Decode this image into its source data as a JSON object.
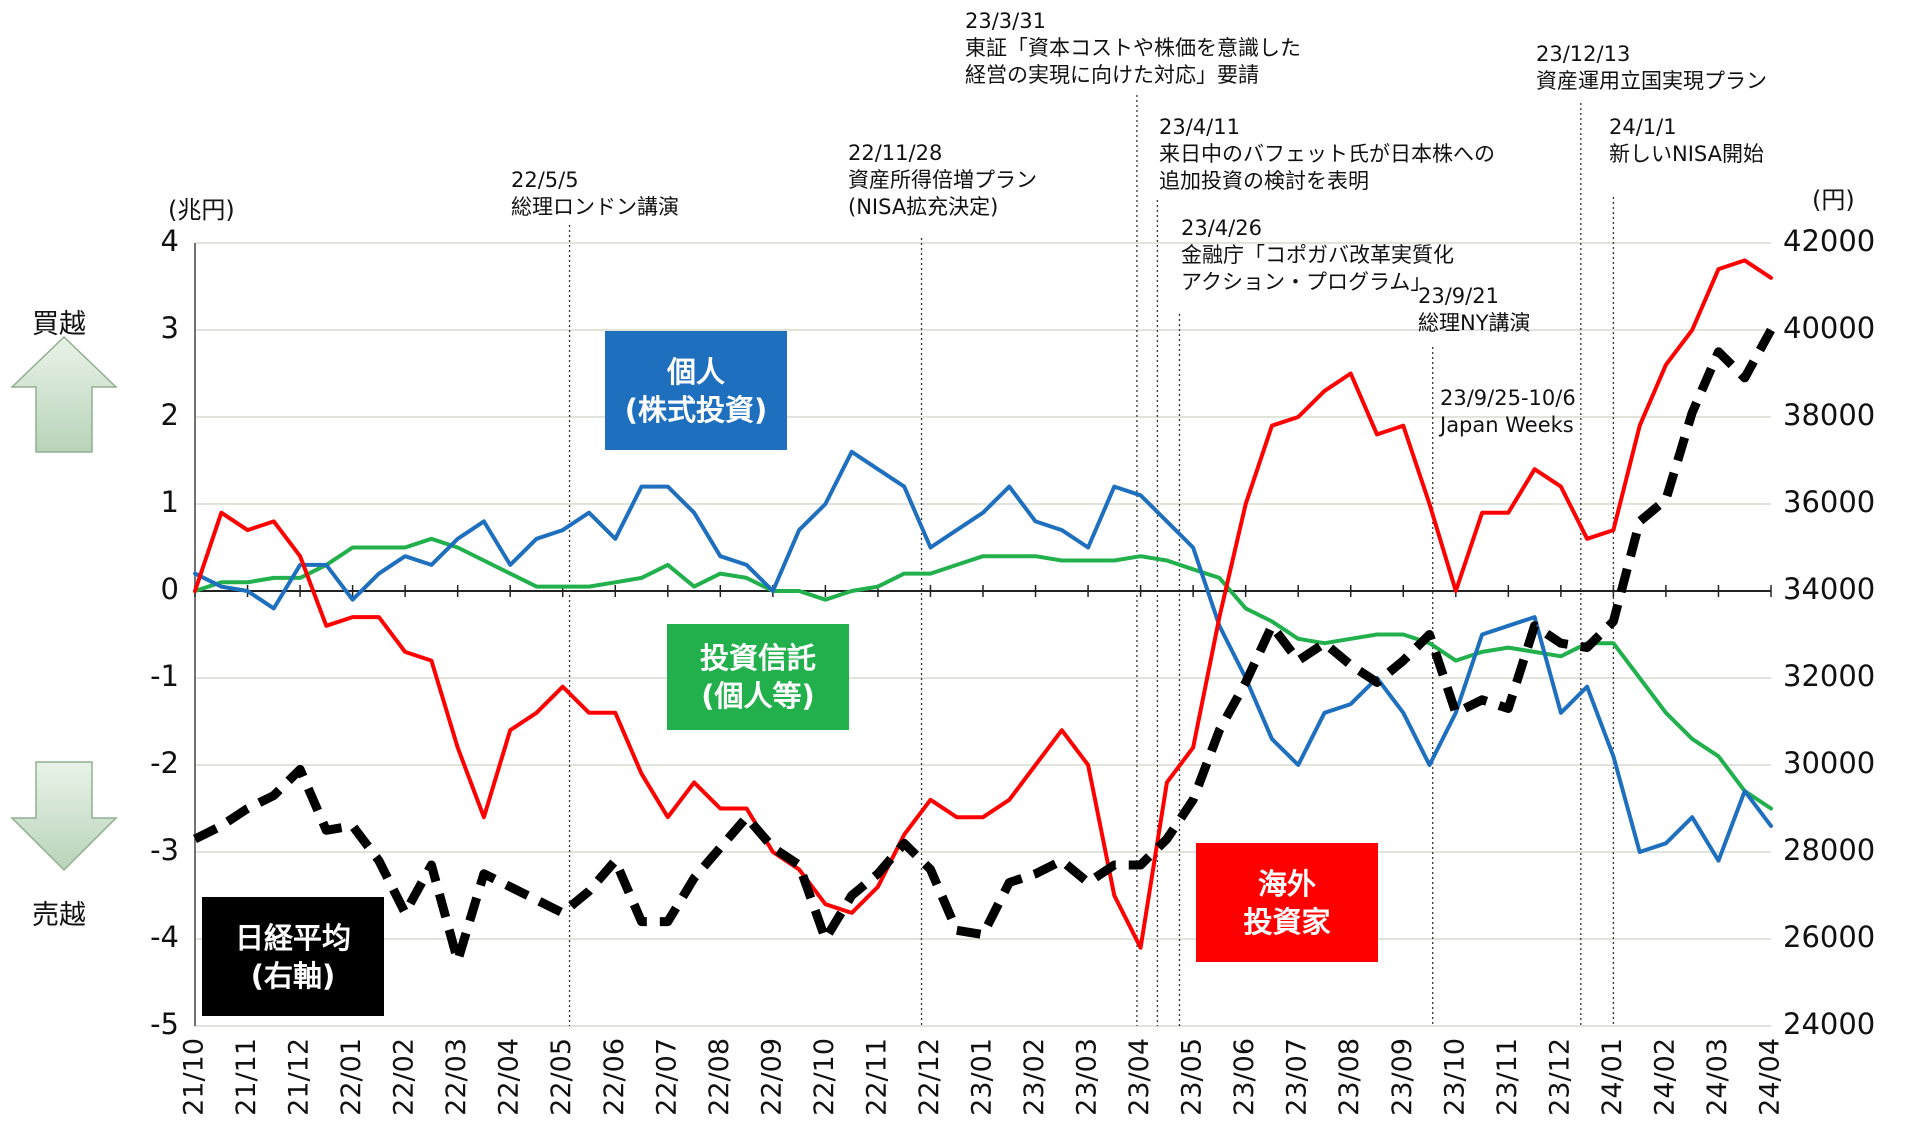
{
  "chart_data": {
    "type": "line",
    "ylabel": "(兆円)",
    "y2label": "(円)",
    "buy_label": "買越",
    "sell_label": "売越",
    "xlim": [
      0,
      30
    ],
    "xticks": [
      {
        "value": 0,
        "label": "21/10"
      },
      {
        "value": 1,
        "label": "21/11"
      },
      {
        "value": 2,
        "label": "21/12"
      },
      {
        "value": 3,
        "label": "22/01"
      },
      {
        "value": 4,
        "label": "22/02"
      },
      {
        "value": 5,
        "label": "22/03"
      },
      {
        "value": 6,
        "label": "22/04"
      },
      {
        "value": 7,
        "label": "22/05"
      },
      {
        "value": 8,
        "label": "22/06"
      },
      {
        "value": 9,
        "label": "22/07"
      },
      {
        "value": 10,
        "label": "22/08"
      },
      {
        "value": 11,
        "label": "22/09"
      },
      {
        "value": 12,
        "label": "22/10"
      },
      {
        "value": 13,
        "label": "22/11"
      },
      {
        "value": 14,
        "label": "22/12"
      },
      {
        "value": 15,
        "label": "23/01"
      },
      {
        "value": 16,
        "label": "23/02"
      },
      {
        "value": 17,
        "label": "23/03"
      },
      {
        "value": 18,
        "label": "23/04"
      },
      {
        "value": 19,
        "label": "23/05"
      },
      {
        "value": 20,
        "label": "23/06"
      },
      {
        "value": 21,
        "label": "23/07"
      },
      {
        "value": 22,
        "label": "23/08"
      },
      {
        "value": 23,
        "label": "23/09"
      },
      {
        "value": 24,
        "label": "23/10"
      },
      {
        "value": 25,
        "label": "23/11"
      },
      {
        "value": 26,
        "label": "23/12"
      },
      {
        "value": 27,
        "label": "24/01"
      },
      {
        "value": 28,
        "label": "24/02"
      },
      {
        "value": 29,
        "label": "24/03"
      },
      {
        "value": 30,
        "label": "24/04"
      }
    ],
    "ylim": [
      -5,
      4
    ],
    "yticks": [
      -5,
      -4,
      -3,
      -2,
      -1,
      0,
      1,
      2,
      3,
      4
    ],
    "y2lim": [
      24000,
      42000
    ],
    "y2ticks": [
      24000,
      26000,
      28000,
      30000,
      32000,
      34000,
      36000,
      38000,
      40000,
      42000
    ],
    "grid": true,
    "x": [
      0,
      0.5,
      1,
      1.5,
      2,
      2.5,
      3,
      3.5,
      4,
      4.5,
      5,
      5.5,
      6,
      6.5,
      7,
      7.5,
      8,
      8.5,
      9,
      9.5,
      10,
      10.5,
      11,
      11.5,
      12,
      12.5,
      13,
      13.5,
      14,
      14.5,
      15,
      15.5,
      16,
      16.5,
      17,
      17.5,
      18,
      18.5,
      19,
      19.5,
      20,
      20.5,
      21,
      21.5,
      22,
      22.5,
      23,
      23.5,
      24,
      24.5,
      25,
      25.5,
      26,
      26.5,
      27,
      27.5,
      28,
      28.5,
      29,
      29.5,
      30
    ],
    "series": [
      {
        "name": "個人\n(株式投資)",
        "color": "#1f6fbf",
        "values": [
          0.2,
          0.05,
          0,
          -0.2,
          0.3,
          0.3,
          -0.1,
          0.2,
          0.4,
          0.3,
          0.6,
          0.8,
          0.3,
          0.6,
          0.7,
          0.9,
          0.6,
          1.2,
          1.2,
          0.9,
          0.4,
          0.3,
          0,
          0.7,
          1,
          1.6,
          1.4,
          1.2,
          0.5,
          0.7,
          0.9,
          1.2,
          0.8,
          0.7,
          0.5,
          1.2,
          1.1,
          0.8,
          0.5,
          -0.4,
          -1,
          -1.7,
          -2,
          -1.4,
          -1.3,
          -1,
          -1.4,
          -2,
          -1.4,
          -0.5,
          -0.4,
          -0.3,
          -1.4,
          -1.1,
          -1.9,
          -3,
          -2.9,
          -2.6,
          -3.1,
          -2.3,
          -2.7
        ]
      },
      {
        "name": "投資信託\n(個人等)",
        "color": "#22b04c",
        "values": [
          0,
          0.1,
          0.1,
          0.15,
          0.15,
          0.3,
          0.5,
          0.5,
          0.5,
          0.6,
          0.5,
          0.35,
          0.2,
          0.05,
          0.05,
          0.05,
          0.1,
          0.15,
          0.3,
          0.05,
          0.2,
          0.15,
          0,
          0,
          -0.1,
          0,
          0.05,
          0.2,
          0.2,
          0.3,
          0.4,
          0.4,
          0.4,
          0.35,
          0.35,
          0.35,
          0.4,
          0.35,
          0.25,
          0.15,
          -0.2,
          -0.35,
          -0.55,
          -0.6,
          -0.55,
          -0.5,
          -0.5,
          -0.6,
          -0.8,
          -0.7,
          -0.65,
          -0.7,
          -0.75,
          -0.6,
          -0.6,
          -1,
          -1.4,
          -1.7,
          -1.9,
          -2.3,
          -2.5
        ]
      },
      {
        "name": "海外\n投資家",
        "color": "#ff0000",
        "values": [
          0,
          0.9,
          0.7,
          0.8,
          0.4,
          -0.4,
          -0.3,
          -0.3,
          -0.7,
          -0.8,
          -1.8,
          -2.6,
          -1.6,
          -1.4,
          -1.1,
          -1.4,
          -1.4,
          -2.1,
          -2.6,
          -2.2,
          -2.5,
          -2.5,
          -3,
          -3.2,
          -3.6,
          -3.7,
          -3.4,
          -2.8,
          -2.4,
          -2.6,
          -2.6,
          -2.4,
          -2,
          -1.6,
          -2,
          -3.5,
          -4.1,
          -2.2,
          -1.8,
          -0.3,
          1,
          1.9,
          2,
          2.3,
          2.5,
          1.8,
          1.9,
          1,
          0,
          0.9,
          0.9,
          1.4,
          1.2,
          0.6,
          0.7,
          1.9,
          2.6,
          3,
          3.7,
          3.8,
          3.6
        ]
      },
      {
        "name": "日経平均\n(右軸)",
        "color": "#000000",
        "axis": "y2",
        "dashed": true,
        "values": [
          28300,
          28600,
          29000,
          29300,
          29900,
          28500,
          28600,
          27800,
          26600,
          27700,
          25500,
          27500,
          27200,
          26900,
          26600,
          27100,
          27800,
          26400,
          26400,
          27400,
          28100,
          28800,
          28100,
          27700,
          26000,
          27000,
          27500,
          28200,
          27600,
          26200,
          26100,
          27300,
          27500,
          27800,
          27300,
          27700,
          27700,
          28300,
          29200,
          30800,
          31900,
          33200,
          32400,
          32800,
          32300,
          31900,
          32400,
          33000,
          31200,
          31500,
          31300,
          33200,
          32800,
          32700,
          33300,
          35600,
          36100,
          38100,
          39500,
          38900,
          40000
        ]
      }
    ],
    "annotations": [
      {
        "x": 7.13,
        "text": "22/5/5\n総理ロンドン講演"
      },
      {
        "x": 13.83,
        "text": "22/11/28\n資産所得倍増プラン\n(NISA拡充決定)"
      },
      {
        "x": 17.93,
        "text": "23/3/31\n東証「資本コストや株価を意識した\n経営の実現に向けた対応」要請"
      },
      {
        "x": 18.32,
        "text": "23/4/11\n来日中のバフェット氏が日本株への\n追加投資の検討を表明"
      },
      {
        "x": 18.74,
        "text": "23/4/26\n金融庁「コポガバ改革実質化\nアクション・プログラム」"
      },
      {
        "x": 23.56,
        "text": "23/9/21\n総理NY講演"
      },
      {
        "text": "23/9/25-10/6\nJapan Weeks"
      },
      {
        "x": 26.38,
        "text": "23/12/13\n資産運用立国実現プラン"
      },
      {
        "x": 27.0,
        "text": "24/1/1\n新しいNISA開始"
      }
    ]
  }
}
